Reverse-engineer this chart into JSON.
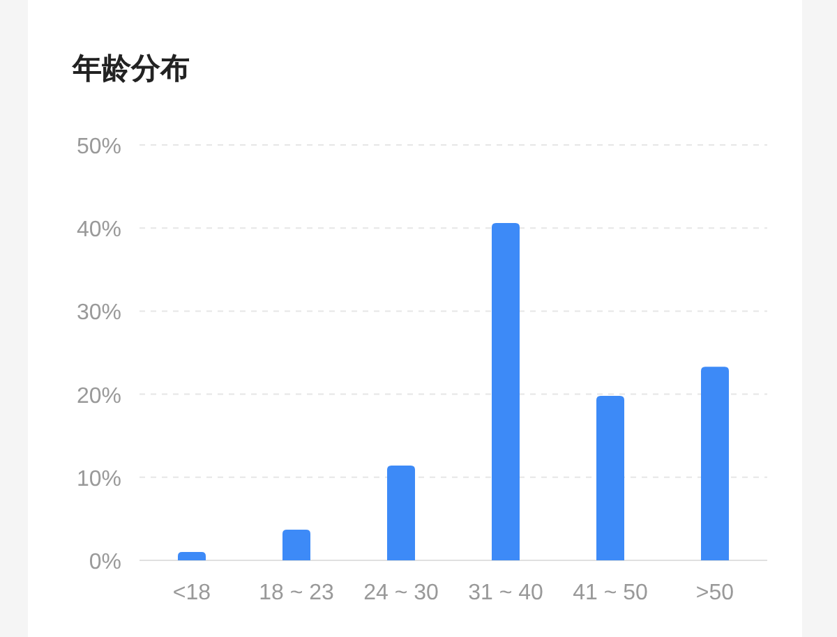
{
  "chart_data": {
    "type": "bar",
    "title": "年龄分布",
    "categories": [
      "<18",
      "18 ~ 23",
      "24 ~ 30",
      "31 ~ 40",
      "41 ~ 50",
      ">50"
    ],
    "values": [
      1,
      3.7,
      11.4,
      40.6,
      19.8,
      23.3
    ],
    "color": "#3d8af7",
    "ylim": [
      0,
      50
    ],
    "yticks": [
      {
        "value": 0,
        "label": "0%"
      },
      {
        "value": 10,
        "label": "10%"
      },
      {
        "value": 20,
        "label": "20%"
      },
      {
        "value": 30,
        "label": "30%"
      },
      {
        "value": 40,
        "label": "40%"
      },
      {
        "value": 50,
        "label": "50%"
      }
    ],
    "grid": "y"
  }
}
